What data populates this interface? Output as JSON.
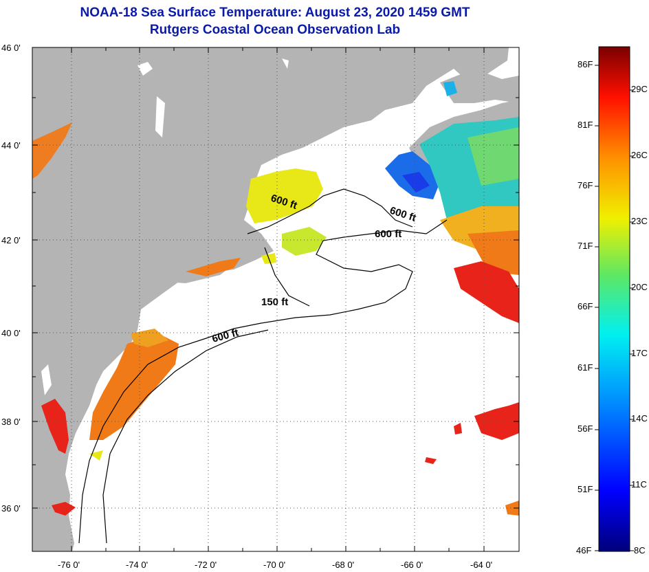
{
  "header": {
    "title": "NOAA-18 Sea Surface Temperature:  August 23, 2020 1459 GMT",
    "subtitle": "Rutgers Coastal Ocean Observation Lab"
  },
  "axes": {
    "lat_labels": [
      "46 0'",
      "44 0'",
      "42 0'",
      "40 0'",
      "38 0'",
      "36 0'"
    ],
    "lon_labels": [
      "-76 0'",
      "-74 0'",
      "-72 0'",
      "-70 0'",
      "-68 0'",
      "-66 0'",
      "-64 0'"
    ]
  },
  "contours": {
    "labels": [
      "600 ft",
      "600 ft",
      "600 ft",
      "150 ft",
      "600 ft"
    ]
  },
  "colorbar": {
    "fahrenheit": [
      "86F",
      "81F",
      "76F",
      "71F",
      "66F",
      "61F",
      "56F",
      "51F",
      "46F"
    ],
    "celsius": [
      "29C",
      "26C",
      "23C",
      "20C",
      "17C",
      "14C",
      "11C",
      "8C"
    ]
  },
  "colors": {
    "land": "#b4b4b4",
    "title": "#0a1aa8",
    "warm": "#e8241a",
    "orange": "#f07a18",
    "yellow": "#e8e818",
    "cyan": "#1ad8e0",
    "blue": "#1a3ce8"
  }
}
